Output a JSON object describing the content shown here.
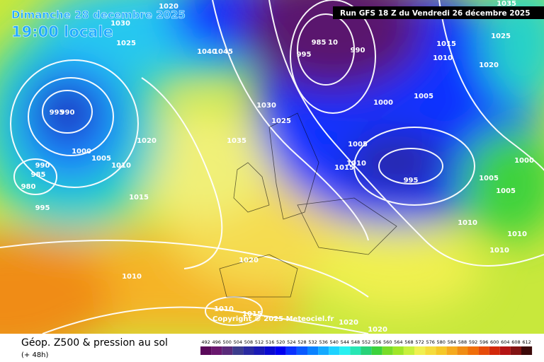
{
  "header": {
    "date": "Dimanche 28 decembre 2025",
    "time": "19:00 locale",
    "run": "Run GFS 18 Z du Vendredi 26 décembre 2025"
  },
  "footer": {
    "title": "Géop. Z500 & pression au sol",
    "lead": "(+ 48h)",
    "copyright": "Copyright © 2025 Meteociel.fr"
  },
  "isobars": [
    "1020",
    "1030",
    "1025",
    "1040",
    "1045",
    "990",
    "995",
    "1000",
    "1005",
    "1010",
    "1020",
    "990",
    "985",
    "980",
    "995",
    "1015",
    "1030",
    "1025",
    "1035",
    "985",
    "10",
    "995",
    "990",
    "1000",
    "1005",
    "1015",
    "1010",
    "995",
    "1005",
    "1015",
    "1010",
    "1020",
    "1025",
    "1035",
    "1000",
    "1005",
    "1005",
    "1010",
    "1010",
    "1010",
    "1020",
    "1010",
    "1010",
    "1015",
    "1020",
    "1020"
  ],
  "legend": {
    "levels": [
      492,
      496,
      500,
      504,
      508,
      512,
      516,
      520,
      524,
      528,
      532,
      536,
      540,
      544,
      548,
      552,
      556,
      560,
      564,
      568,
      572,
      576,
      580,
      584,
      588,
      592,
      596,
      600,
      604,
      608,
      612
    ],
    "colors": [
      "#5a0a5a",
      "#6a186e",
      "#5a2a7a",
      "#3c3c8c",
      "#2a2aa0",
      "#1a1ab4",
      "#0a0ad0",
      "#0000f0",
      "#0a32ff",
      "#0a5aff",
      "#0a82ff",
      "#14aaff",
      "#1ed2ff",
      "#28f0f0",
      "#28e6b4",
      "#28d278",
      "#3cd23c",
      "#78dc28",
      "#a0e628",
      "#c8f03c",
      "#f0f050",
      "#f5dc3c",
      "#f5c828",
      "#f5aa1e",
      "#f08c14",
      "#f06e0a",
      "#e64b0a",
      "#d2280a",
      "#b41414",
      "#821414",
      "#3c0a0a"
    ]
  }
}
